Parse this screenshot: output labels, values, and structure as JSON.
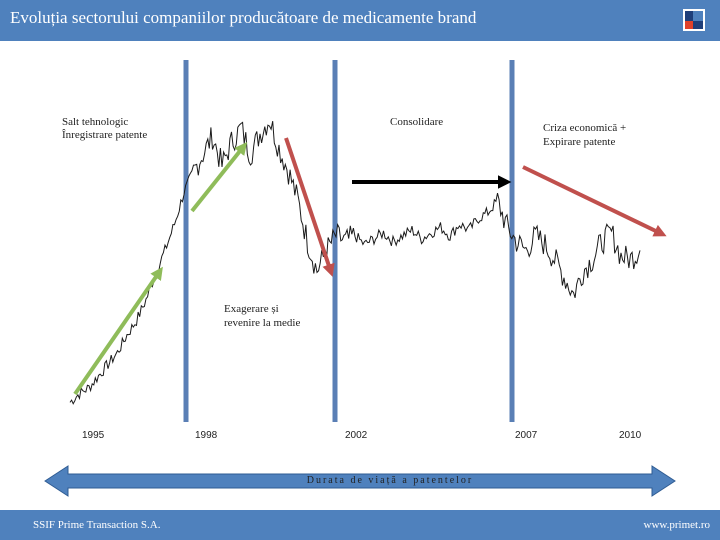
{
  "header": {
    "title": "Evoluția sectorului companiilor producătoare de medicamente brand"
  },
  "footer": {
    "company": "SSIF Prime Transaction S.A.",
    "website": "www.primet.ro"
  },
  "colors": {
    "header": "#4f81bd",
    "separator": "#5a7fb5",
    "green_arrow": "#8fbc5a",
    "red_arrow": "#c0504d",
    "black_arrow": "#000000"
  },
  "chart_data": {
    "type": "line",
    "title": "",
    "xlabel": "",
    "ylabel": "",
    "x_ticks": [
      "1995",
      "1998",
      "2002",
      "2007",
      "2010"
    ],
    "phase_labels": {
      "phase1_line1": "Salt tehnologic",
      "phase1_line2": "Înregistrare patente",
      "consolidation": "Consolidare",
      "crisis_line1": "Criza economică +",
      "crisis_line2": "Expirare patente",
      "hype_line1": "Exagerare și",
      "hype_line2": "revenire la medie"
    },
    "lifespan_label": "Durata de viață a patentelor",
    "series": [
      {
        "values": [
          0.03,
          0.06,
          0.08,
          0.12,
          0.16,
          0.2,
          0.26,
          0.31,
          0.38,
          0.47,
          0.55,
          0.64,
          0.75,
          0.82,
          0.88,
          0.94,
          0.84,
          0.92,
          0.97,
          0.88,
          0.95,
          1.0,
          0.9,
          0.82,
          0.72,
          0.58,
          0.48,
          0.55,
          0.6,
          0.58,
          0.6,
          0.57,
          0.59,
          0.61,
          0.58,
          0.6,
          0.62,
          0.59,
          0.61,
          0.63,
          0.6,
          0.64,
          0.62,
          0.66,
          0.68,
          0.72,
          0.63,
          0.58,
          0.55,
          0.6,
          0.57,
          0.52,
          0.46,
          0.4,
          0.48,
          0.52,
          0.58,
          0.61,
          0.53,
          0.52,
          0.55
        ]
      }
    ]
  }
}
